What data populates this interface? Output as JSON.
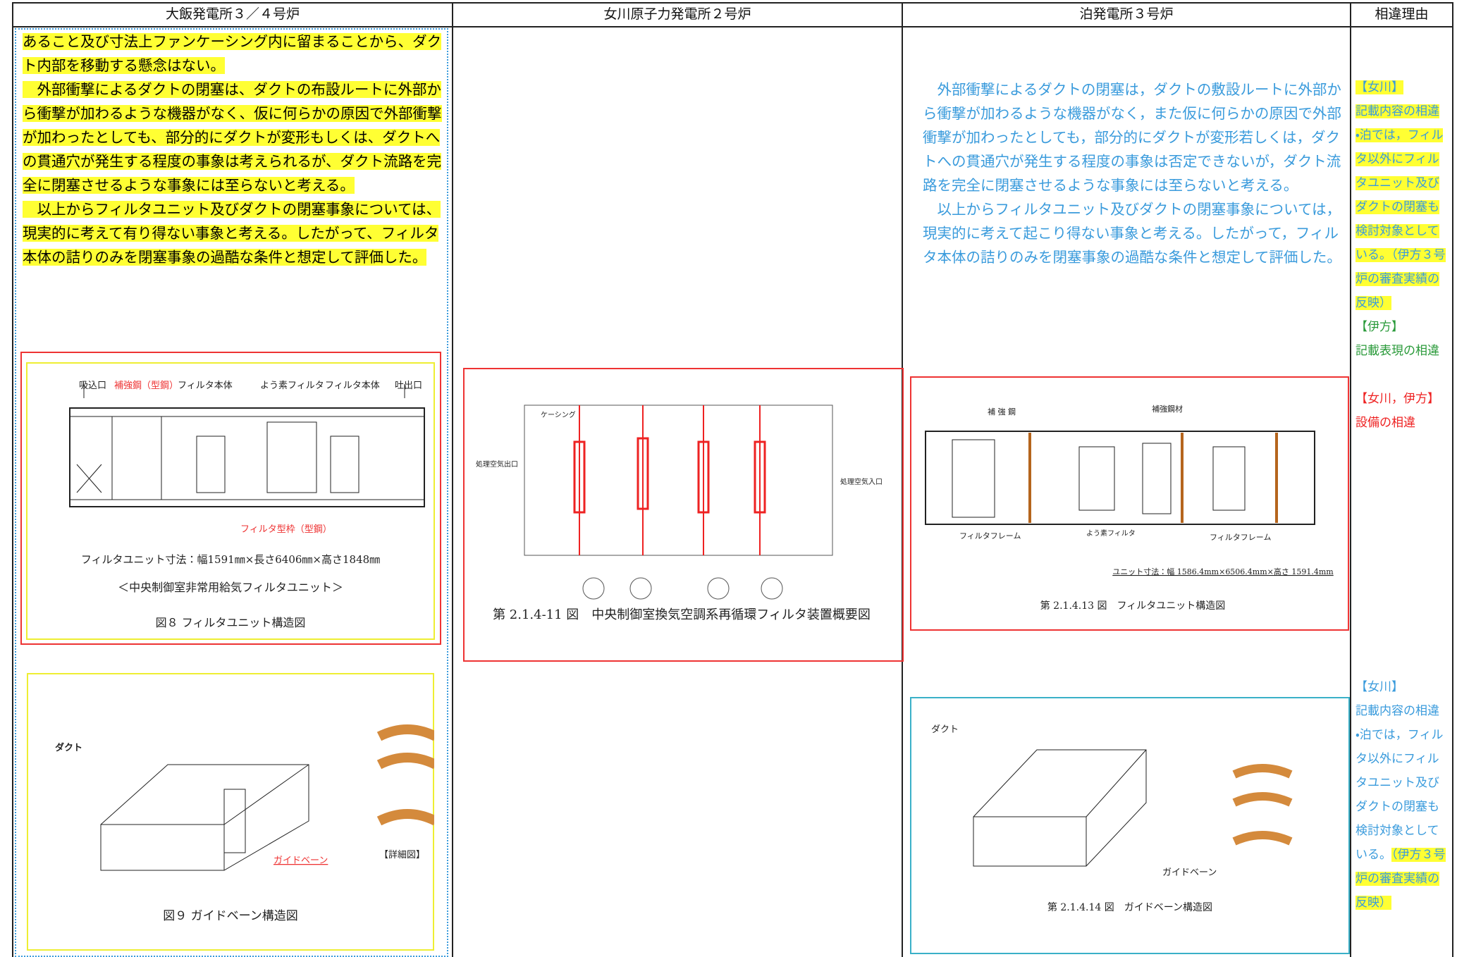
{
  "table": {
    "headers": [
      "大飯発電所３／４号炉",
      "女川原子力発電所２号炉",
      "泊発電所３号炉",
      "相違理由"
    ],
    "ohi": {
      "paragraphs": [
        "あること及び寸法上ファンケーシング内に留まることから、ダクト内部を移動する懸念はない。",
        "　外部衝撃によるダクトの閉塞は、ダクトの布設ルートに外部から衝撃が加わるような機器がなく、仮に何らかの原因で外部衝撃が加わったとしても、部分的にダクトが変形もしくは、ダクトへの貫通穴が発生する程度の事象は考えられるが、ダクト流路を完全に閉塞させるような事象には至らないと考える。",
        "　以上からフィルタユニット及びダクトの閉塞事象については、現実的に考えて有り得ない事象と考える。したがって、フィルタ本体の詰りのみを閉塞事象の過酷な条件と想定して評価した。"
      ],
      "figure8": {
        "labels": [
          "吸込口",
          "補強鋼（型鋼）",
          "フィルタ本体",
          "よう素フィルタ",
          "フィルタ本体",
          "吐出口",
          "フィルタ型枠（型鋼）"
        ],
        "dimension": "フィルタユニット寸法：幅1591㎜×長さ6406㎜×高さ1848㎜",
        "subtitle": "＜中央制御室非常用給気フィルタユニット＞",
        "caption": "図８ フィルタユニット構造図"
      },
      "figure9": {
        "labels": [
          "ダクト",
          "ガイドベーン",
          "【詳細図】"
        ],
        "caption": "図９ ガイドベーン構造図"
      }
    },
    "onagawa": {
      "figure": {
        "labels": [
          "ケーシング",
          "処理空気出口",
          "処理空気入口"
        ],
        "caption": "第 2.1.4-11 図　中央制御室換気空調系再循環フィルタ装置概要図"
      }
    },
    "tomari": {
      "paragraphs": [
        "　外部衝撃によるダクトの閉塞は，ダクトの敷設ルートに外部から衝撃が加わるような機器がなく，また仮に何らかの原因で外部衝撃が加わったとしても，部分的にダクトが変形若しくは，ダクトへの貫通穴が発生する程度の事象は否定できないが，ダクト流路を完全に閉塞させるような事象には至らないと考える。",
        "　以上からフィルタユニット及びダクトの閉塞事象については，現実的に考えて起こり得ない事象と考える。したがって，フィルタ本体の詰りのみを閉塞事象の過酷な条件と想定して評価した。"
      ],
      "figure13": {
        "labels": [
          "補 強 鋼",
          "補強鋼材",
          "フィルタフレーム",
          "よう素フィルタ",
          "フィルタフレーム"
        ],
        "dimension": "ユニット寸法：幅 1586.4mm×6506.4mm×高さ 1591.4mm",
        "caption": "第 2.1.4.13 図　フィルタユニット構造図"
      },
      "figure14": {
        "labels": [
          "ダクト",
          "ガイドベーン"
        ],
        "caption": "第 2.1.4.14 図　ガイドベーン構造図"
      }
    },
    "reasons": {
      "block1": [
        "【女川】",
        "記載内容の相違",
        "・泊では，フィルタ以外にフィルタユニット及びダクトの閉塞も検討対象としている。（伊方３号炉の審査実績の反映）",
        "【伊方】",
        "記載表現の相違",
        "【女川，伊方】",
        "設備の相違"
      ],
      "block2": [
        "【女川】",
        "記載内容の相違",
        "・泊では，フィルタ以外にフィルタユニット及びダクトの閉塞も検討対象としている。",
        "（伊方３号炉の審査実績の反映）"
      ]
    }
  }
}
